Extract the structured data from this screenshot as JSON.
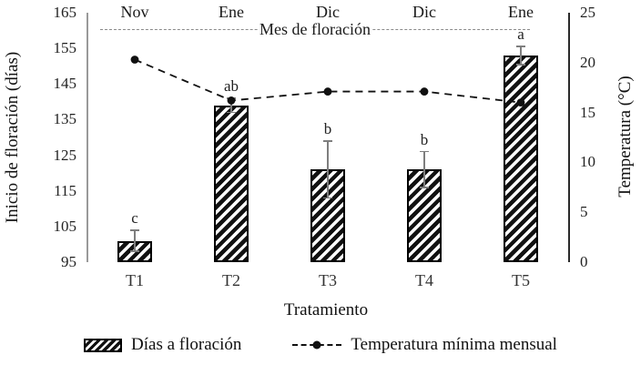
{
  "chart_data": {
    "type": "bar",
    "subtype": "bar-line-combo",
    "categories": [
      "T1",
      "T2",
      "T3",
      "T4",
      "T5"
    ],
    "series": [
      {
        "name": "Días a floración",
        "type": "bar",
        "axis": "left",
        "values": [
          101,
          139,
          121,
          121,
          153
        ],
        "errors": [
          3,
          2,
          8,
          5,
          2.5
        ],
        "sig_letters": [
          "c",
          "ab",
          "b",
          "b",
          "a"
        ]
      },
      {
        "name": "Temperatura mínima mensual",
        "type": "line",
        "axis": "right",
        "style": "dashed-with-dots",
        "values": [
          20.3,
          16.2,
          17.1,
          17.1,
          16.0
        ]
      }
    ],
    "month_labels": [
      "Nov",
      "Ene",
      "Dic",
      "Dic",
      "Ene"
    ],
    "annotation_line_label": "Mes de floración",
    "left_axis": {
      "title": "Inicio de floración (días)",
      "min": 95,
      "max": 165,
      "ticks": [
        95,
        105,
        115,
        125,
        135,
        145,
        155,
        165
      ]
    },
    "right_axis": {
      "title": "Temperatura (°C)",
      "min": 0,
      "max": 25,
      "ticks": [
        0,
        5,
        10,
        15,
        20,
        25
      ]
    },
    "x_axis": {
      "title": "Tratamiento"
    },
    "legend_position": "bottom",
    "grid": false,
    "colors": {
      "bar_fill": "#ffffff",
      "bar_hatch": "#111111",
      "bar_border": "#000000",
      "line": "#111111",
      "error_bar": "#7e7e7e",
      "annotation_line": "#8a8a8a"
    }
  }
}
